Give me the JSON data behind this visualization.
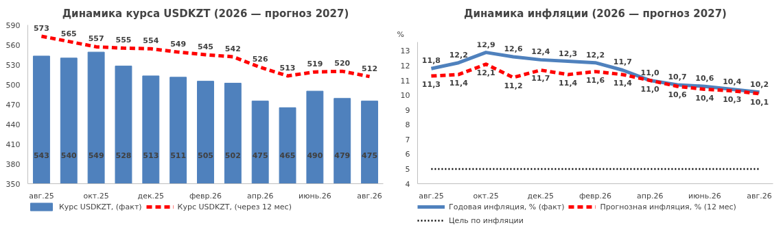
{
  "chart_data": [
    {
      "type": "bar",
      "title": "Динамика курса USDKZT (2026 — прогноз 2027)",
      "categories": [
        "авг.25",
        null,
        "окт.25",
        null,
        "дек.25",
        null,
        "февр.26",
        null,
        "апр.26",
        null,
        "июнь.26",
        null,
        "авг.26"
      ],
      "ylim": [
        350,
        590
      ],
      "yticks": [
        350,
        380,
        410,
        440,
        470,
        500,
        530,
        560,
        590
      ],
      "grid": false,
      "legend": "bottom",
      "marker": "none",
      "series": [
        {
          "name": "Курс USDKZT, (факт)",
          "type": "bar",
          "color": "#4f81bd",
          "values": [
            543,
            540,
            549,
            528,
            513,
            511,
            505,
            502,
            475,
            465,
            490,
            479,
            475
          ],
          "value_labels": [
            "543",
            "540",
            "549",
            "528",
            "513",
            "511",
            "505",
            "502",
            "475",
            "465",
            "490",
            "479",
            "475"
          ]
        },
        {
          "name": "Курс USDKZT, (через 12 мес)",
          "type": "line",
          "line_style": "dashed",
          "color": "#ff0000",
          "values": [
            573,
            565,
            557,
            555,
            554,
            549,
            545,
            542,
            526,
            513,
            519,
            520,
            512
          ],
          "value_labels": [
            "573",
            "565",
            "557",
            "555",
            "554",
            "549",
            "545",
            "542",
            "526",
            "513",
            "519",
            "520",
            "512"
          ]
        }
      ]
    },
    {
      "type": "line",
      "title": "Динамика инфляции (2026 — прогноз 2027)",
      "ylabel": "%",
      "categories": [
        "авг.25",
        null,
        "окт.25",
        null,
        "дек.25",
        null,
        "февр.26",
        null,
        "апр.26",
        null,
        "июнь.26",
        null,
        "авг.26"
      ],
      "ylim": [
        4,
        13.6
      ],
      "yticks": [
        4,
        5,
        6,
        7,
        8,
        9,
        10,
        11,
        12,
        13
      ],
      "grid": false,
      "legend": "bottom",
      "marker": "none",
      "series": [
        {
          "name": "Годовая инфляция, % (факт)",
          "line_style": "solid",
          "color": "#4f81bd",
          "values": [
            11.8,
            12.2,
            12.9,
            12.6,
            12.4,
            12.3,
            12.2,
            11.7,
            11.0,
            10.7,
            10.6,
            10.4,
            10.2
          ],
          "value_labels": [
            "11,8",
            "12,2",
            "12,9",
            "12,6",
            "12,4",
            "12,3",
            "12,2",
            "11,7",
            "11,0",
            "10,7",
            "10,6",
            "10,4",
            "10,2"
          ]
        },
        {
          "name": "Прогнозная инфляция, % (12 мес)",
          "line_style": "dashed",
          "color": "#ff0000",
          "values": [
            11.3,
            11.4,
            12.1,
            11.2,
            11.7,
            11.4,
            11.6,
            11.4,
            11.0,
            10.6,
            10.4,
            10.3,
            10.1
          ],
          "value_labels": [
            "11,3",
            "11,4",
            "12,1",
            "11,2",
            "11,7",
            "11,4",
            "11,6",
            "11,4",
            "11,0",
            "10,6",
            "10,4",
            "10,3",
            "10,1"
          ]
        },
        {
          "name": "Цель по инфляции",
          "line_style": "dotted",
          "color": "#000000",
          "values": [
            5,
            5,
            5,
            5,
            5,
            5,
            5,
            5,
            5,
            5,
            5,
            5,
            5
          ]
        }
      ]
    }
  ]
}
